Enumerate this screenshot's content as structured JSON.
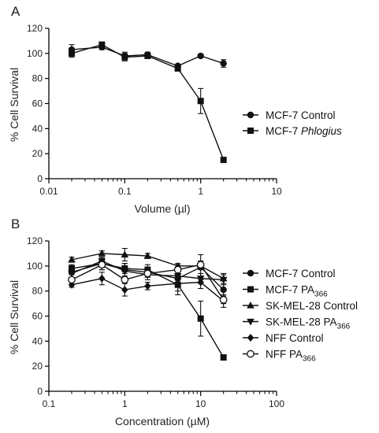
{
  "chart_data": [
    {
      "type": "line",
      "panel_label": "A",
      "xlabel": "Volume (µl)",
      "ylabel": "% Cell Survival",
      "xscale": "log",
      "xlim": [
        0.01,
        10
      ],
      "ylim": [
        0,
        120
      ],
      "xticks": [
        "0.01",
        "0.1",
        "1",
        "10"
      ],
      "yticks": [
        "0",
        "20",
        "40",
        "60",
        "80",
        "100",
        "120"
      ],
      "legend_position": "right",
      "series": [
        {
          "name": "MCF-7 Control",
          "marker": "circle",
          "x": [
            0.02,
            0.05,
            0.1,
            0.2,
            0.5,
            1,
            2
          ],
          "y": [
            103,
            105,
            98,
            99,
            90,
            98,
            92
          ],
          "err": [
            4,
            2,
            3,
            2,
            1,
            1,
            3
          ]
        },
        {
          "name": "MCF-7 Phlogius",
          "name_plain": "MCF-7 ",
          "name_italic": "Phlogius",
          "marker": "square",
          "x": [
            0.02,
            0.05,
            0.1,
            0.2,
            0.5,
            1,
            2
          ],
          "y": [
            100,
            107,
            97,
            98,
            88,
            62,
            15
          ],
          "err": [
            3,
            2,
            3,
            2,
            2,
            10,
            1
          ]
        }
      ]
    },
    {
      "type": "line",
      "panel_label": "B",
      "xlabel": "Concentration (µM)",
      "ylabel": "% Cell Survival",
      "xscale": "log",
      "xlim": [
        0.1,
        100
      ],
      "ylim": [
        0,
        120
      ],
      "xticks": [
        "0.1",
        "1",
        "10",
        "100"
      ],
      "yticks": [
        "0",
        "20",
        "40",
        "60",
        "80",
        "100",
        "120"
      ],
      "legend_position": "right",
      "series": [
        {
          "name": "MCF-7 Control",
          "marker": "circle",
          "x": [
            0.2,
            0.5,
            1,
            2,
            5,
            10,
            20
          ],
          "y": [
            95,
            102,
            97,
            95,
            90,
            99,
            81
          ],
          "err": [
            4,
            5,
            5,
            4,
            6,
            10,
            8
          ]
        },
        {
          "name": "MCF-7 PA366",
          "name_plain": "MCF-7 PA",
          "name_sub": "366",
          "marker": "square",
          "x": [
            0.2,
            0.5,
            1,
            2,
            5,
            10,
            20
          ],
          "y": [
            98,
            102,
            98,
            97,
            85,
            58,
            27
          ],
          "err": [
            3,
            3,
            4,
            4,
            8,
            14,
            2
          ]
        },
        {
          "name": "SK-MEL-28 Control",
          "marker": "triangle-up",
          "x": [
            0.2,
            0.5,
            1,
            2,
            5,
            10,
            20
          ],
          "y": [
            105,
            110,
            109,
            108,
            100,
            100,
            90
          ],
          "err": [
            2,
            2,
            5,
            2,
            2,
            3,
            4
          ]
        },
        {
          "name": "SK-MEL-28 PA366",
          "name_plain": "SK-MEL-28 PA",
          "name_sub": "366",
          "marker": "triangle-down",
          "x": [
            0.2,
            0.5,
            1,
            2,
            5,
            10,
            20
          ],
          "y": [
            94,
            104,
            96,
            93,
            92,
            90,
            89
          ],
          "err": [
            3,
            3,
            4,
            4,
            3,
            4,
            4
          ]
        },
        {
          "name": "NFF Control",
          "marker": "diamond",
          "x": [
            0.2,
            0.5,
            1,
            2,
            5,
            10,
            20
          ],
          "y": [
            85,
            90,
            81,
            84,
            86,
            87,
            72
          ],
          "err": [
            2,
            5,
            5,
            3,
            6,
            5,
            5
          ]
        },
        {
          "name": "NFF PA366",
          "name_plain": "NFF PA",
          "name_sub": "366",
          "marker": "circle-open",
          "x": [
            0.2,
            0.5,
            1,
            2,
            5,
            10,
            20
          ],
          "y": [
            89,
            101,
            89,
            94,
            97,
            101,
            73
          ],
          "err": [
            4,
            4,
            3,
            3,
            4,
            3,
            3
          ]
        }
      ]
    }
  ]
}
